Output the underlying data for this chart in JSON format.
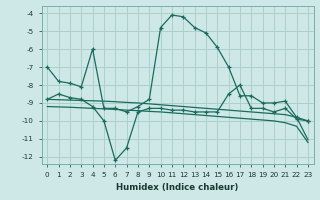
{
  "xlabel": "Humidex (Indice chaleur)",
  "xlim": [
    -0.5,
    23.5
  ],
  "ylim": [
    -12.4,
    -3.6
  ],
  "yticks": [
    -12,
    -11,
    -10,
    -9,
    -8,
    -7,
    -6,
    -5,
    -4
  ],
  "xticks": [
    0,
    1,
    2,
    3,
    4,
    5,
    6,
    7,
    8,
    9,
    10,
    11,
    12,
    13,
    14,
    15,
    16,
    17,
    18,
    19,
    20,
    21,
    22,
    23
  ],
  "bg_color": "#cde8e6",
  "grid_color": "#acd0cd",
  "line_color": "#1a6b5e",
  "y_main": [
    -7.0,
    -7.8,
    -7.9,
    -8.1,
    -6.0,
    -9.3,
    -9.3,
    -9.5,
    -9.2,
    -8.8,
    -4.8,
    -4.1,
    -4.2,
    -4.8,
    -5.1,
    -5.9,
    -7.0,
    -8.6,
    -8.6,
    -9.0,
    -9.0,
    -8.9,
    -9.8,
    -10.0
  ],
  "y_jagged": [
    -8.8,
    -8.5,
    -8.7,
    -8.8,
    -9.2,
    -10.0,
    -12.2,
    -11.5,
    -9.5,
    -9.3,
    -9.3,
    -9.4,
    -9.4,
    -9.5,
    -9.5,
    -9.5,
    -8.5,
    -8.0,
    -9.3,
    -9.3,
    -9.5,
    -9.3,
    -9.9,
    -10.0
  ],
  "y_ref1": [
    -8.8,
    -8.82,
    -8.84,
    -8.86,
    -8.88,
    -8.9,
    -8.93,
    -8.97,
    -9.0,
    -9.05,
    -9.1,
    -9.15,
    -9.2,
    -9.25,
    -9.3,
    -9.35,
    -9.4,
    -9.45,
    -9.5,
    -9.55,
    -9.6,
    -9.65,
    -9.8,
    -11.05
  ],
  "y_ref2": [
    -9.2,
    -9.22,
    -9.24,
    -9.27,
    -9.3,
    -9.33,
    -9.36,
    -9.4,
    -9.43,
    -9.47,
    -9.5,
    -9.55,
    -9.6,
    -9.65,
    -9.7,
    -9.75,
    -9.8,
    -9.85,
    -9.9,
    -9.95,
    -10.0,
    -10.1,
    -10.3,
    -11.2
  ]
}
